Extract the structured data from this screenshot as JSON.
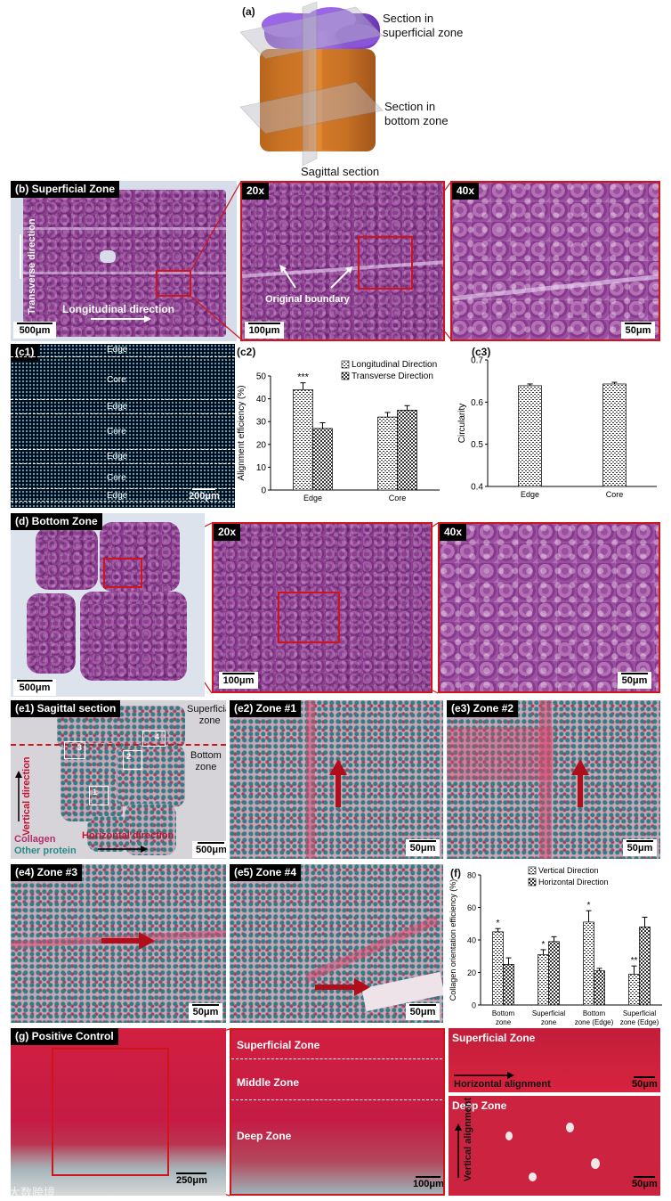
{
  "a": {
    "label": "(a)",
    "superficial": [
      "Section in",
      "superficial zone"
    ],
    "bottom": [
      "Section in",
      "bottom zone"
    ],
    "sagittal": "Sagittal section"
  },
  "b": {
    "label": "(b) Superficial Zone",
    "transverse": "Transverse direction",
    "longitudinal": "Longitudinal direction",
    "scale_main": "500μm",
    "mag20": "20x",
    "mag40": "40x",
    "boundary": "Original boundary",
    "scale20": "100μm",
    "scale40": "50μm"
  },
  "c1": {
    "label": "(c1)",
    "bands": [
      "Edge",
      "Core",
      "Edge",
      "Core",
      "Edge",
      "Core",
      "Edge"
    ],
    "scale": "200μm"
  },
  "c2": {
    "label": "(c2)",
    "chart_data": {
      "type": "bar",
      "categories": [
        "Edge",
        "Core"
      ],
      "series": [
        {
          "name": "Longitudinal Direction",
          "values": [
            44,
            32
          ],
          "errors": [
            3,
            2
          ]
        },
        {
          "name": "Transverse Direction",
          "values": [
            27,
            35
          ],
          "errors": [
            2.5,
            2
          ]
        }
      ],
      "ylabel": "Alignment efficiency (%)",
      "ylim": [
        0,
        50
      ],
      "yticks": [
        0,
        10,
        20,
        30,
        40,
        50
      ],
      "annotation": "***"
    }
  },
  "c3": {
    "label": "(c3)",
    "chart_data": {
      "type": "bar",
      "categories": [
        "Edge",
        "Core"
      ],
      "values": [
        0.639,
        0.643
      ],
      "errors": [
        0.004,
        0.004
      ],
      "ylabel": "Circularity",
      "ylim": [
        0.4,
        0.7
      ],
      "yticks": [
        0.4,
        0.5,
        0.6,
        0.7
      ]
    }
  },
  "d": {
    "label": "(d) Bottom Zone",
    "scale_main": "500μm",
    "mag20": "20x",
    "mag40": "40x",
    "scale20": "100μm",
    "scale40": "50μm"
  },
  "e1": {
    "label": "(e1) Sagittal section",
    "superficial": [
      "Superficial",
      "zone"
    ],
    "bottom": [
      "Bottom",
      "zone"
    ],
    "vertical": "Vertical direction",
    "horizontal": "Horizontal direction",
    "collagen": "Collagen",
    "other": "Other protein",
    "boxes": [
      "1",
      "2",
      "3",
      "4"
    ],
    "scale": "500μm"
  },
  "e2": {
    "label": "(e2) Zone #1",
    "scale": "50μm"
  },
  "e3": {
    "label": "(e3) Zone #2",
    "scale": "50μm"
  },
  "e4": {
    "label": "(e4) Zone #3",
    "scale": "50μm"
  },
  "e5": {
    "label": "(e5) Zone #4",
    "scale": "50μm"
  },
  "f": {
    "label": "(f)",
    "chart_data": {
      "type": "bar",
      "categories": [
        [
          "Bottom",
          "zone"
        ],
        [
          "Superficial",
          "zone"
        ],
        [
          "Bottom",
          "zone (Edge)"
        ],
        [
          "Superficial",
          "zone (Edge)"
        ]
      ],
      "series": [
        {
          "name": "Vertical Direction",
          "values": [
            45,
            31,
            51,
            19
          ],
          "errors": [
            2,
            3,
            7,
            5
          ]
        },
        {
          "name": "Horizontal Direction",
          "values": [
            25,
            39,
            21,
            48
          ],
          "errors": [
            4,
            3,
            1.5,
            6
          ]
        }
      ],
      "ylabel": "Collagen orientation efficiency (%)",
      "ylim": [
        0,
        80
      ],
      "yticks": [
        0,
        20,
        40,
        60,
        80
      ],
      "annotations": [
        "*",
        "*",
        "*",
        "**"
      ]
    }
  },
  "g": {
    "label": "(g) Positive Control",
    "scale_main": "250μm",
    "superficial": "Superficial Zone",
    "middle": "Middle Zone",
    "deep": "Deep Zone",
    "scale_mid": "100μm",
    "right_top": "Superficial Zone",
    "horizontal": "Horizontal alignment",
    "scale_rt": "50μm",
    "right_bottom": "Deep Zone",
    "vertical": "Vertical alignment",
    "scale_rb": "50μm"
  },
  "watermark": "大数跨境"
}
